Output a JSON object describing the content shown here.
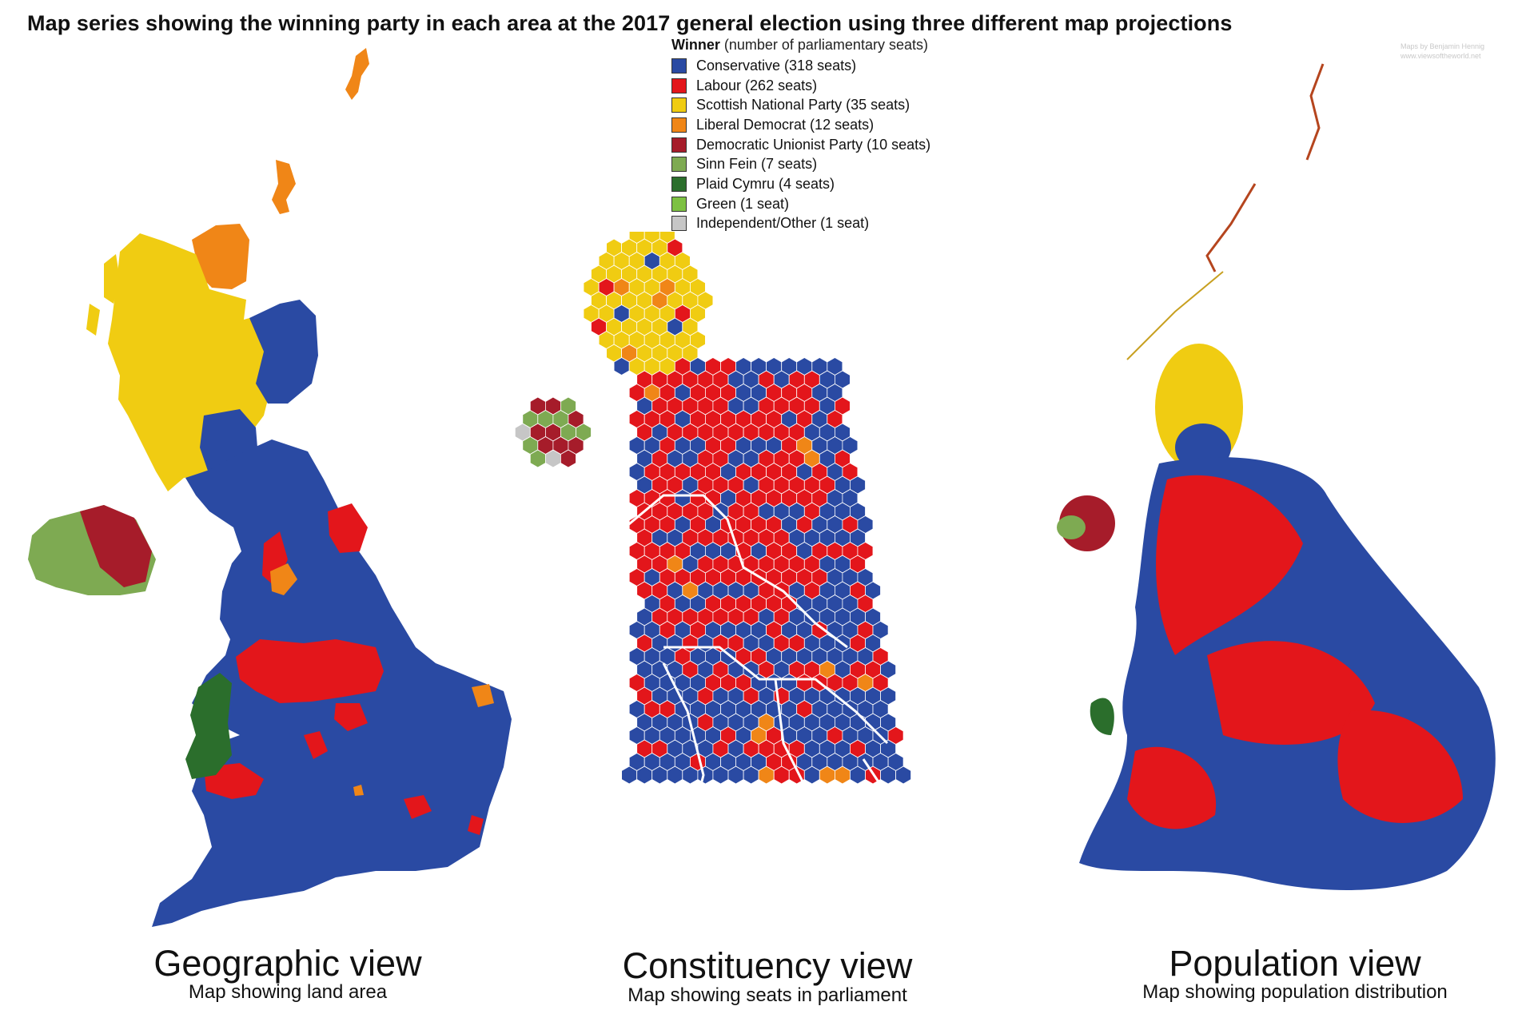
{
  "title": "Map series showing the winning party in each area at the 2017 general election using three different map projections",
  "credit": {
    "line1": "Maps by Benjamin Hennig",
    "line2": "www.viewsoftheworld.net"
  },
  "legend": {
    "heading": "Winner",
    "subheading": "(number of parliamentary seats)",
    "items": [
      {
        "label": "Conservative (318 seats)",
        "color": "#2a4aa3"
      },
      {
        "label": "Labour (262 seats)",
        "color": "#e3161b"
      },
      {
        "label": "Scottish National Party (35 seats)",
        "color": "#f0cc12"
      },
      {
        "label": "Liberal Democrat (12 seats)",
        "color": "#f08617"
      },
      {
        "label": "Democratic Unionist Party (10 seats)",
        "color": "#a61c2a"
      },
      {
        "label": "Sinn Fein (7 seats)",
        "color": "#7eaa52"
      },
      {
        "label": "Plaid Cymru (4 seats)",
        "color": "#2b6e2c"
      },
      {
        "label": "Green (1 seat)",
        "color": "#7dc142"
      },
      {
        "label": "Independent/Other (1 seat)",
        "color": "#c6c6c6"
      }
    ]
  },
  "maps": [
    {
      "title": "Geographic view",
      "subtitle": "Map showing land area"
    },
    {
      "title": "Constituency view",
      "subtitle": "Map showing seats in parliament"
    },
    {
      "title": "Population view",
      "subtitle": "Map showing population distribution"
    }
  ]
}
